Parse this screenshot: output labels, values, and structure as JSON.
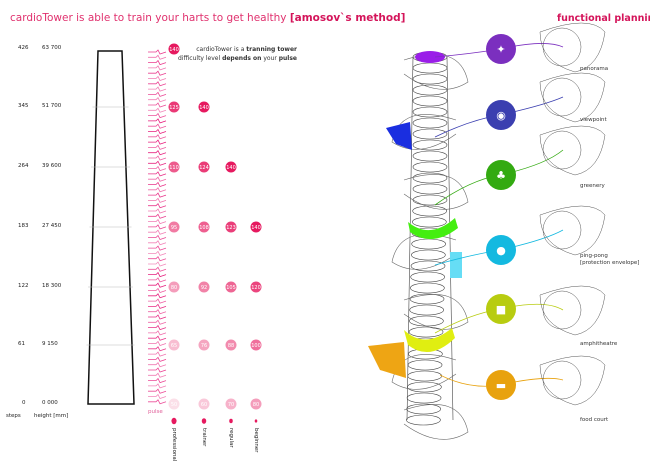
{
  "title": {
    "main": "cardioTower is able to train your harts to get healthy ",
    "bold": "[amosov`s method]"
  },
  "note": {
    "line1_pre": "cardioTower is a ",
    "line1_bold": "tranning tower",
    "line2_pre": "difficulty level ",
    "line2_bold1": "depends on",
    "line2_mid": " your ",
    "line2_bold2": "pulse"
  },
  "axis": {
    "steps_label": "steps",
    "height_label": "height [mm]",
    "pulse_label": "pulse"
  },
  "rows": [
    {
      "steps": "426",
      "height": "63 700",
      "pulse": [
        140,
        null,
        null,
        null
      ]
    },
    {
      "steps": "345",
      "height": "51 700",
      "pulse": [
        125,
        140,
        null,
        null
      ]
    },
    {
      "steps": "264",
      "height": "39 600",
      "pulse": [
        110,
        124,
        140,
        null
      ]
    },
    {
      "steps": "183",
      "height": "27 450",
      "pulse": [
        95,
        108,
        123,
        140
      ]
    },
    {
      "steps": "122",
      "height": "18 300",
      "pulse": [
        80,
        92,
        105,
        120
      ]
    },
    {
      "steps": "61",
      "height": "9 150",
      "pulse": [
        65,
        76,
        88,
        100
      ]
    },
    {
      "steps": "0",
      "height": "0 000",
      "pulse": [
        50,
        60,
        70,
        80
      ]
    }
  ],
  "levels": [
    "professional",
    "trainer",
    "regular",
    "beginner"
  ],
  "accent": "#e6195f",
  "functional": {
    "title": "functional planning",
    "items": [
      {
        "label": "panorama",
        "icon": "telescope-icon",
        "color": "#7b2fbf"
      },
      {
        "label": "viewpoint",
        "icon": "eye-icon",
        "color": "#3b3fb0"
      },
      {
        "label": "greenery",
        "icon": "tree-icon",
        "color": "#33aa11"
      },
      {
        "label": "ping-pong",
        "label2": "[protection envelope]",
        "icon": "ping-pong-icon",
        "color": "#14b9e0"
      },
      {
        "label": "amphitheatre",
        "icon": "camera-icon",
        "color": "#b8cc10"
      },
      {
        "label": "food court",
        "icon": "burger-icon",
        "color": "#e8a20e"
      }
    ]
  }
}
